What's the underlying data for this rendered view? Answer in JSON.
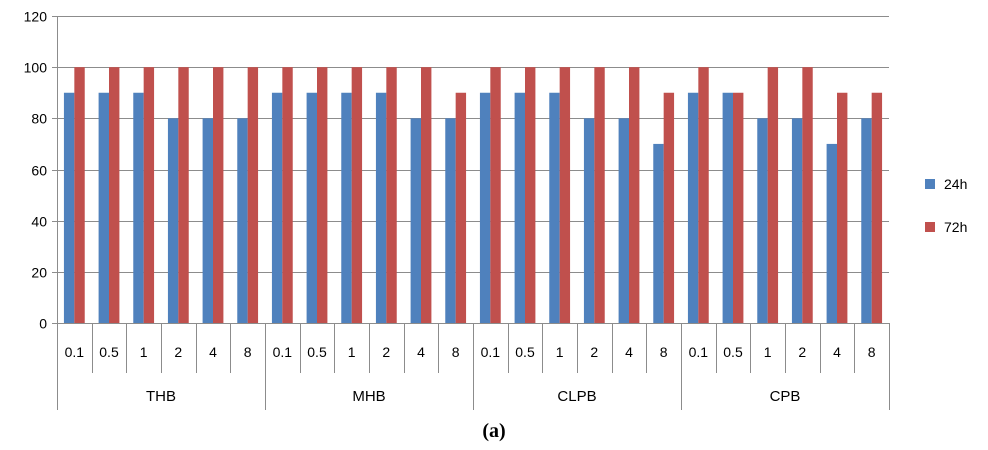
{
  "caption": "(a)",
  "chart_data": {
    "type": "bar",
    "groups": [
      {
        "label": "THB",
        "categories": [
          "0.1",
          "0.5",
          "1",
          "2",
          "4",
          "8"
        ]
      },
      {
        "label": "MHB",
        "categories": [
          "0.1",
          "0.5",
          "1",
          "2",
          "4",
          "8"
        ]
      },
      {
        "label": "CLPB",
        "categories": [
          "0.1",
          "0.5",
          "1",
          "2",
          "4",
          "8"
        ]
      },
      {
        "label": "CPB",
        "categories": [
          "0.1",
          "0.5",
          "1",
          "2",
          "4",
          "8"
        ]
      }
    ],
    "series": [
      {
        "name": "24h",
        "color": "#4F81BD",
        "values": [
          90,
          90,
          90,
          80,
          80,
          80,
          90,
          90,
          90,
          90,
          80,
          80,
          90,
          90,
          90,
          80,
          80,
          70,
          90,
          90,
          80,
          80,
          70,
          80
        ]
      },
      {
        "name": "72h",
        "color": "#C0504D",
        "values": [
          100,
          100,
          100,
          100,
          100,
          100,
          100,
          100,
          100,
          100,
          100,
          90,
          100,
          100,
          100,
          100,
          100,
          90,
          100,
          90,
          100,
          100,
          90,
          90
        ]
      }
    ],
    "ylim": [
      0,
      120
    ],
    "yticks": [
      0,
      20,
      40,
      60,
      80,
      100,
      120
    ],
    "grid": true,
    "legend_position": "right",
    "title": "",
    "xlabel": "",
    "ylabel": ""
  }
}
